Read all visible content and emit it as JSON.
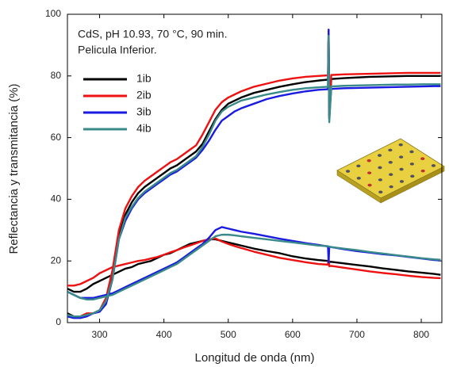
{
  "chart_data": {
    "type": "line",
    "annotations": [
      "CdS, pH 10.93, 70 °C, 90 min.",
      "Pelicula Inferior."
    ],
    "x_label": "Longitud de onda (nm)",
    "y_label": "Reflectancia y transmitancia (%)",
    "xlim": [
      250,
      832
    ],
    "ylim": [
      0,
      100
    ],
    "xticks": [
      300,
      400,
      500,
      600,
      700,
      800
    ],
    "yticks": [
      0,
      20,
      40,
      60,
      80,
      100
    ],
    "legend": "upper left",
    "x": [
      250,
      260,
      270,
      280,
      290,
      300,
      310,
      320,
      330,
      340,
      350,
      360,
      370,
      380,
      390,
      400,
      410,
      420,
      430,
      440,
      450,
      460,
      470,
      480,
      490,
      500,
      510,
      520,
      540,
      560,
      580,
      600,
      620,
      640,
      655,
      656,
      657,
      660,
      680,
      700,
      720,
      740,
      760,
      780,
      800,
      820,
      830
    ],
    "series": [
      {
        "name": "1ib",
        "color": "#000000",
        "values": [
          [
            3,
            2,
            2,
            2.5,
            3,
            4,
            7,
            15,
            28,
            35,
            39,
            42,
            44,
            45.5,
            47,
            48.5,
            50,
            51,
            52.5,
            54,
            55.5,
            58,
            62,
            66,
            69,
            71,
            72,
            73,
            74.5,
            75.5,
            76.5,
            77.3,
            78,
            78.5,
            78.8,
            94,
            66,
            79,
            79.3,
            79.5,
            79.7,
            79.8,
            79.9,
            80,
            80,
            80,
            80
          ],
          [
            11,
            10,
            10,
            11,
            12.5,
            13.5,
            14.5,
            15.5,
            16.5,
            17.5,
            18,
            19,
            19.5,
            20,
            21,
            22,
            22.5,
            23.5,
            24.5,
            25.5,
            26,
            26.5,
            27,
            27,
            26.5,
            26,
            25.5,
            25,
            24,
            23.2,
            22.5,
            21.5,
            20.8,
            20.3,
            20,
            19.8,
            19.7,
            19.7,
            19.2,
            18.7,
            18.2,
            17.6,
            17.1,
            16.6,
            16.2,
            15.8,
            15.5
          ]
        ]
      },
      {
        "name": "2ib",
        "color": "#ee1111",
        "values": [
          [
            2,
            2,
            2,
            3,
            3,
            4,
            8,
            17,
            30,
            37,
            41,
            44,
            46,
            47.5,
            49,
            50.5,
            52,
            53,
            54.5,
            56,
            57.5,
            61,
            65,
            69,
            71.5,
            73,
            74,
            75,
            76.5,
            77.5,
            78.5,
            79.2,
            79.7,
            80,
            80.2,
            95,
            67,
            80.3,
            80.5,
            80.6,
            80.7,
            80.8,
            80.9,
            81,
            81,
            81,
            81
          ],
          [
            12,
            12,
            12.5,
            13.5,
            14.5,
            16,
            17,
            18,
            18.5,
            19,
            19.5,
            20,
            20.3,
            20.8,
            21.3,
            22,
            22.8,
            23.5,
            24.3,
            25,
            25.7,
            26.5,
            27,
            27.3,
            26.3,
            25.5,
            24.8,
            24.2,
            23,
            22,
            21,
            20.3,
            19.6,
            19,
            18.8,
            21,
            18.3,
            18.4,
            17.8,
            17.2,
            16.6,
            16.1,
            15.7,
            15.2,
            14.8,
            14.5,
            14.4
          ]
        ]
      },
      {
        "name": "3ib",
        "color": "#1a1ae0",
        "values": [
          [
            2,
            1.5,
            1.5,
            2,
            3,
            3.5,
            6,
            14,
            27,
            33,
            37,
            40,
            42,
            43.5,
            45,
            46.5,
            48,
            49,
            50.5,
            52,
            53.5,
            56,
            59,
            62.5,
            65.5,
            67,
            68.5,
            69.5,
            71,
            72.5,
            73.5,
            74.3,
            75,
            75.5,
            75.7,
            95,
            66,
            75.8,
            76,
            76.1,
            76.2,
            76.3,
            76.4,
            76.5,
            76.6,
            76.7,
            76.7
          ],
          [
            10,
            9,
            8,
            8,
            8,
            8.5,
            9,
            9.5,
            10.5,
            11.5,
            12.5,
            13.5,
            14.5,
            15.5,
            16.5,
            17.5,
            18.5,
            19.5,
            21,
            22.5,
            24,
            25.5,
            27.5,
            30,
            31,
            30.5,
            30,
            29.5,
            28.8,
            28,
            27.2,
            26.5,
            25.8,
            25.2,
            24.7,
            19.5,
            24.6,
            24.5,
            23.8,
            23.2,
            22.7,
            22.2,
            21.8,
            21.3,
            20.8,
            20.3,
            20.2
          ]
        ]
      },
      {
        "name": "4ib",
        "color": "#3a8a8a",
        "values": [
          [
            2.5,
            2,
            2,
            2.5,
            3,
            4,
            7,
            14,
            27,
            34,
            37.5,
            40.5,
            42.5,
            44,
            45.5,
            47,
            48.5,
            49.5,
            51,
            52.5,
            54,
            57,
            61,
            65.5,
            68.5,
            70,
            71,
            72,
            73,
            74,
            74.8,
            75.5,
            76,
            76.3,
            76.5,
            93,
            65,
            76.6,
            76.8,
            76.9,
            77,
            77.1,
            77.2,
            77.2,
            77.3,
            77.3,
            77.3
          ],
          [
            10,
            9,
            8,
            7.5,
            7.5,
            8,
            8.5,
            9,
            10,
            11,
            12,
            13,
            14,
            15,
            16,
            17,
            18,
            19,
            20.5,
            22,
            23.5,
            25,
            26.5,
            28,
            28.5,
            28.5,
            28.3,
            28,
            27.5,
            27,
            26.5,
            26,
            25.5,
            25,
            24.8,
            24.7,
            24.6,
            24.5,
            24,
            23.5,
            22.9,
            22.4,
            21.9,
            21.4,
            20.9,
            20.5,
            20.4
          ]
        ]
      }
    ]
  }
}
